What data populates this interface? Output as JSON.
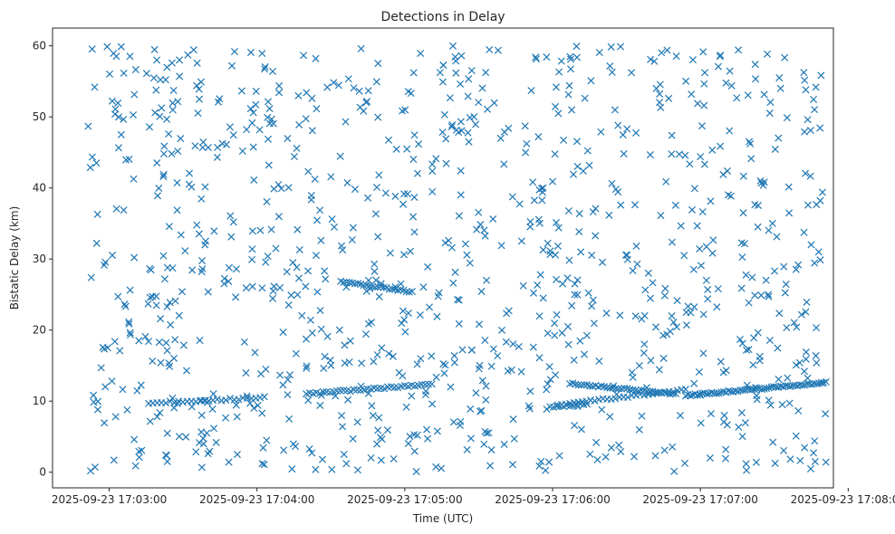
{
  "chart_data": {
    "type": "scatter",
    "title": "Detections in Delay",
    "xlabel": "Time (UTC)",
    "ylabel": "Bistatic Delay (km)",
    "marker": "x",
    "color": "#1f77b4",
    "grid": false,
    "legend": "none",
    "xlim": [
      "2025-09-23 17:02:37",
      "2025-09-23 17:07:54"
    ],
    "ylim": [
      -2.2,
      62.5
    ],
    "x_ticks": [
      "2025-09-23 17:03:00",
      "2025-09-23 17:04:00",
      "2025-09-23 17:05:00",
      "2025-09-23 17:06:00",
      "2025-09-23 17:07:00",
      "2025-09-23 17:08:00"
    ],
    "y_ticks": [
      "0",
      "10",
      "20",
      "30",
      "40",
      "50",
      "60"
    ],
    "x_range": [
      "2025-09-23 17:02:51",
      "2025-09-23 17:07:51"
    ],
    "y_range": [
      0,
      60
    ],
    "random_detection_count": 1000,
    "tracks": [
      {
        "start": "2025-09-23 17:03:16",
        "end": "2025-09-23 17:04:03",
        "y_start": 9.7,
        "y_end": 10.5,
        "count": 28
      },
      {
        "start": "2025-09-23 17:04:20",
        "end": "2025-09-23 17:05:11",
        "y_start": 11.0,
        "y_end": 12.4,
        "count": 38
      },
      {
        "start": "2025-09-23 17:04:34",
        "end": "2025-09-23 17:05:03",
        "y_start": 26.8,
        "y_end": 25.4,
        "count": 26
      },
      {
        "start": "2025-09-23 17:06:07",
        "end": "2025-09-23 17:06:50",
        "y_start": 12.5,
        "y_end": 11.0,
        "count": 38
      },
      {
        "start": "2025-09-23 17:06:02",
        "end": "2025-09-23 17:06:54",
        "y_start": 9.5,
        "y_end": 11.6,
        "count": 32
      },
      {
        "start": "2025-09-23 17:06:54",
        "end": "2025-09-23 17:07:51",
        "y_start": 10.8,
        "y_end": 12.6,
        "count": 60
      },
      {
        "start": "2025-09-23 17:05:59",
        "end": "2025-09-23 17:06:14",
        "y_start": 9.2,
        "y_end": 9.6,
        "count": 12
      }
    ]
  }
}
